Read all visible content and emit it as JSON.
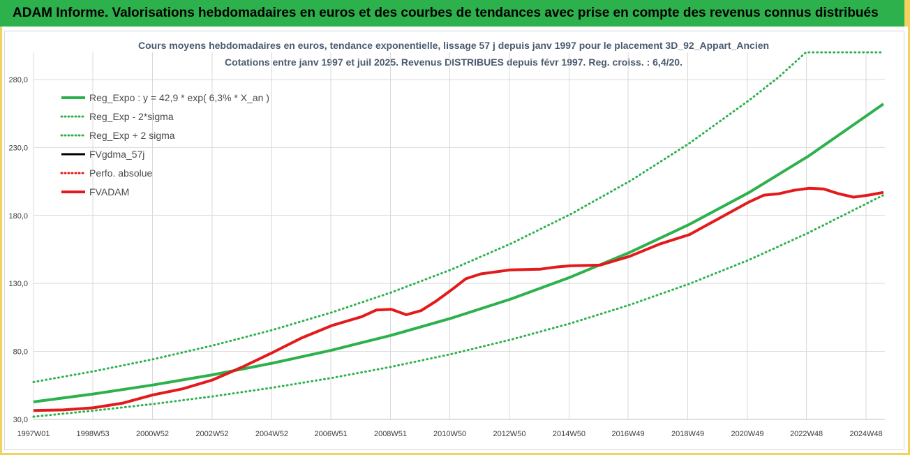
{
  "banner": {
    "title": "ADAM Informe. Valorisations hebdomadaires en euros et des courbes de tendances avec prise en compte des revenus connus distribués"
  },
  "colors": {
    "banner": "#2db14c",
    "reg_expo": "#2db14c",
    "fvadam": "#e31a1c",
    "fvgdma": "#000000",
    "accent_border": "#f2d25c"
  },
  "chart_data": {
    "type": "line",
    "title_line1": "Cours moyens hebdomadaires en euros, tendance exponentielle, lissage 57 j depuis janv 1997 pour le placement 3D_92_Appart_Ancien",
    "title_line2": "Cotations entre janv 1997 et juil 2025. Revenus DISTRIBUES depuis févr 1997. Reg. croiss. : 6,4/20.",
    "xlabel": "",
    "ylabel": "",
    "ylim": [
      30,
      300
    ],
    "xlim": [
      1997.0,
      2025.55
    ],
    "grid": true,
    "legend_position": "top-left",
    "y_ticks": [
      30,
      80,
      130,
      180,
      230,
      280
    ],
    "y_tick_labels": [
      "30,0",
      "80,0",
      "130,0",
      "180,0",
      "230,0",
      "280,0"
    ],
    "x_ticks": [
      {
        "x": 1997.0,
        "label": "1997W01"
      },
      {
        "x": 1998.99,
        "label": "1998W53"
      },
      {
        "x": 2000.99,
        "label": "2000W52"
      },
      {
        "x": 2002.99,
        "label": "2002W52"
      },
      {
        "x": 2004.99,
        "label": "2004W52"
      },
      {
        "x": 2006.97,
        "label": "2006W51"
      },
      {
        "x": 2008.97,
        "label": "2008W51"
      },
      {
        "x": 2010.96,
        "label": "2010W50"
      },
      {
        "x": 2012.96,
        "label": "2012W50"
      },
      {
        "x": 2014.96,
        "label": "2014W50"
      },
      {
        "x": 2016.94,
        "label": "2016W49"
      },
      {
        "x": 2018.94,
        "label": "2018W49"
      },
      {
        "x": 2020.94,
        "label": "2020W49"
      },
      {
        "x": 2022.92,
        "label": "2022W48"
      },
      {
        "x": 2024.92,
        "label": "2024W48"
      }
    ],
    "series": [
      {
        "name": "Reg_Expo : y = 42,9 * exp( 6,3% *  X_an )",
        "style": "solid-thick",
        "color": "#2db14c",
        "x": [
          1997.0,
          1999.0,
          2001.0,
          2003.0,
          2005.0,
          2007.0,
          2009.0,
          2011.0,
          2013.0,
          2015.0,
          2017.0,
          2019.0,
          2021.0,
          2023.0,
          2025.5
        ],
        "y": [
          42.9,
          48.7,
          55.3,
          62.8,
          71.3,
          80.9,
          91.9,
          104.4,
          118.5,
          134.6,
          152.9,
          173.5,
          197.0,
          223.8,
          262.0
        ]
      },
      {
        "name": "Reg_Exp - 2*sigma",
        "style": "dotted",
        "color": "#2db14c",
        "x": [
          1997.0,
          1999.0,
          2001.0,
          2003.0,
          2005.0,
          2007.0,
          2009.0,
          2011.0,
          2013.0,
          2015.0,
          2017.0,
          2019.0,
          2021.0,
          2023.0,
          2025.5
        ],
        "y": [
          32.0,
          36.4,
          41.3,
          46.9,
          53.3,
          60.5,
          68.7,
          78.0,
          88.6,
          100.6,
          114.3,
          129.8,
          147.4,
          167.4,
          195.0
        ]
      },
      {
        "name": "Reg_Exp + 2 sigma",
        "style": "dotted",
        "color": "#2db14c",
        "x": [
          1997.0,
          1999.0,
          2001.0,
          2003.0,
          2005.0,
          2007.0,
          2009.0,
          2011.0,
          2013.0,
          2015.0,
          2017.0,
          2019.0,
          2021.0,
          2022.0,
          2022.9,
          2025.5
        ],
        "y": [
          57.5,
          65.3,
          74.2,
          84.3,
          95.7,
          108.7,
          123.4,
          140.1,
          159.2,
          180.8,
          205.3,
          233.2,
          264.8,
          282.0,
          300.0,
          300.0
        ]
      },
      {
        "name": "FVgdma_57j",
        "style": "solid",
        "color": "#000000",
        "x": [
          1997.0,
          1998.0,
          1999.0,
          2000.0,
          2001.0,
          2002.0,
          2003.0,
          2004.0,
          2005.0,
          2006.0,
          2007.0,
          2008.0,
          2008.5,
          2009.0,
          2009.5,
          2010.0,
          2010.5,
          2011.0,
          2011.5,
          2012.0,
          2013.0,
          2014.0,
          2014.5,
          2015.0,
          2016.0,
          2017.0,
          2018.0,
          2019.0,
          2020.0,
          2021.0,
          2021.5,
          2022.0,
          2022.5,
          2023.0,
          2023.5,
          2024.0,
          2024.5,
          2025.0,
          2025.5
        ],
        "y": [
          36.5,
          37.0,
          38.5,
          42.0,
          48.0,
          52.5,
          59.0,
          68.5,
          79.0,
          90.0,
          99.0,
          105.5,
          110.5,
          111.0,
          107.0,
          110.0,
          117.0,
          125.0,
          133.5,
          137.0,
          140.0,
          140.5,
          142.0,
          143.0,
          143.5,
          150.0,
          159.0,
          166.0,
          178.0,
          190.0,
          195.0,
          196.0,
          198.5,
          200.0,
          199.5,
          196.0,
          193.5,
          195.0,
          197.0
        ]
      },
      {
        "name": "Perfo. absolue",
        "style": "dotted",
        "color": "#e31a1c",
        "x": [],
        "y": []
      },
      {
        "name": "FVADAM",
        "style": "solid-thick",
        "color": "#e31a1c",
        "x": [
          1997.0,
          1998.0,
          1999.0,
          2000.0,
          2001.0,
          2002.0,
          2003.0,
          2004.0,
          2005.0,
          2006.0,
          2007.0,
          2008.0,
          2008.5,
          2009.0,
          2009.5,
          2010.0,
          2010.5,
          2011.0,
          2011.5,
          2012.0,
          2013.0,
          2014.0,
          2014.5,
          2015.0,
          2016.0,
          2017.0,
          2018.0,
          2019.0,
          2020.0,
          2021.0,
          2021.5,
          2022.0,
          2022.5,
          2023.0,
          2023.5,
          2024.0,
          2024.5,
          2025.0,
          2025.5
        ],
        "y": [
          36.5,
          37.0,
          38.5,
          42.0,
          48.0,
          52.5,
          59.0,
          68.5,
          79.0,
          90.0,
          99.0,
          105.5,
          110.5,
          111.0,
          107.0,
          110.0,
          117.0,
          125.0,
          133.5,
          137.0,
          140.0,
          140.5,
          142.0,
          143.0,
          143.5,
          150.0,
          159.0,
          166.0,
          178.0,
          190.0,
          195.0,
          196.0,
          198.5,
          200.0,
          199.5,
          196.0,
          193.5,
          195.0,
          197.0
        ]
      }
    ]
  }
}
